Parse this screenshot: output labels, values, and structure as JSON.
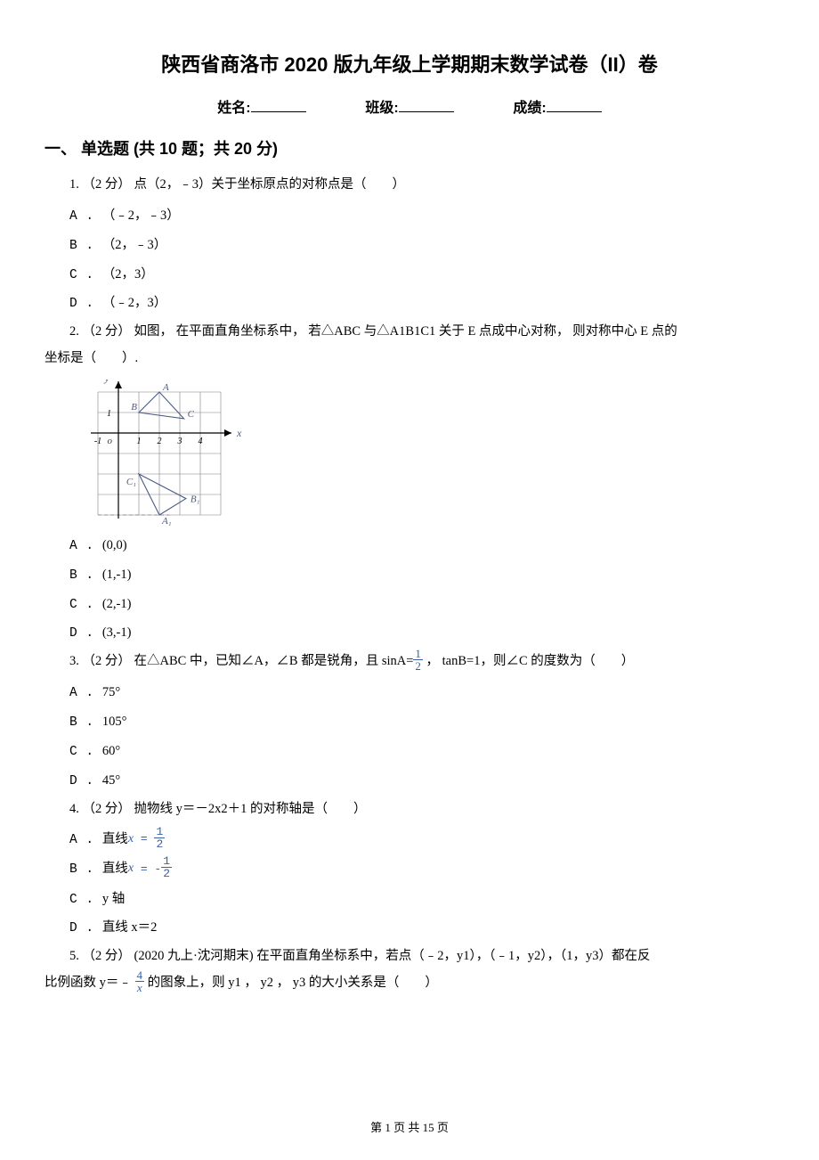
{
  "title": "陕西省商洛市 2020 版九年级上学期期末数学试卷（II）卷",
  "info": {
    "name_label": "姓名:",
    "class_label": "班级:",
    "score_label": "成绩:"
  },
  "section": "一、 单选题 (共 10 题；共 20 分)",
  "q1": {
    "stem": "1.  （2 分） 点（2，﹣3）关于坐标原点的对称点是（　　）",
    "A": "（﹣2，﹣3）",
    "B": "（2，﹣3）",
    "C": "（2，3）",
    "D": "（﹣2，3）"
  },
  "q2": {
    "stem_a": "2.  （2 分） 如图， 在平面直角坐标系中， 若△ABC 与△A1B1C1 关于 E 点成中心对称， 则对称中心 E 点的",
    "stem_b": "坐标是（　　）.",
    "A": "(0,0)",
    "B": "(1,-1)",
    "C": "(2,-1)",
    "D": "(3,-1)",
    "figure": {
      "width": 195,
      "height": 165,
      "bg": "#ffffff",
      "grid_color": "#808080",
      "axis_color": "#000000",
      "label_color": "#4a5a8a",
      "cell": 23,
      "origin_x": 55,
      "origin_y": 60,
      "x_range": [
        -1,
        5
      ],
      "y_range": [
        -4,
        2
      ],
      "x_ticks": [
        -1,
        1,
        2,
        3,
        4
      ],
      "y_ticks": [
        1
      ],
      "origin_label": "o",
      "x_axis_label": "x",
      "y_axis_label": "y",
      "tri1_label_A": "A",
      "tri1_label_B": "B",
      "tri1_label_C": "C",
      "tri2_label_A": "A₁",
      "tri2_label_B": "B₁",
      "tri2_label_C": "C₁",
      "tri1": {
        "A": [
          2,
          2
        ],
        "B": [
          1,
          1
        ],
        "C": [
          3.2,
          0.7
        ]
      },
      "tri2": {
        "A": [
          2,
          -4
        ],
        "B": [
          3.3,
          -3.2
        ],
        "C": [
          1,
          -2
        ]
      }
    }
  },
  "q3": {
    "stem_pre": "3.  （2 分） 在△ABC 中，已知∠A，∠B 都是锐角，且 sinA=",
    "frac": {
      "num": "1",
      "den": "2"
    },
    "stem_post": " ， tanB=1，则∠C 的度数为（　　）",
    "A": "75°",
    "B": "105°",
    "C": "60°",
    "D": "45°"
  },
  "q4": {
    "stem": "4.  （2 分） 抛物线 y＝－2x2＋1 的对称轴是（　　）",
    "A_pre": "直线",
    "A_frac": {
      "num": "1",
      "den": "2"
    },
    "B_pre": "直线",
    "B_frac": {
      "num": "1",
      "den": "2"
    },
    "C": "y 轴",
    "D": "直线 x＝2"
  },
  "q5": {
    "stem_a": "5.  （2 分） (2020 九上·沈河期末)  在平面直角坐标系中，若点（﹣2，y1），（﹣1，y2），（1，y3）都在反",
    "stem_b_pre": "比例函数 y＝﹣ ",
    "frac": {
      "num": "4",
      "den": "x"
    },
    "stem_b_post": " 的图象上，则 y1 ， y2 ， y3 的大小关系是（　　）"
  },
  "footer": "第 1 页 共 15 页"
}
